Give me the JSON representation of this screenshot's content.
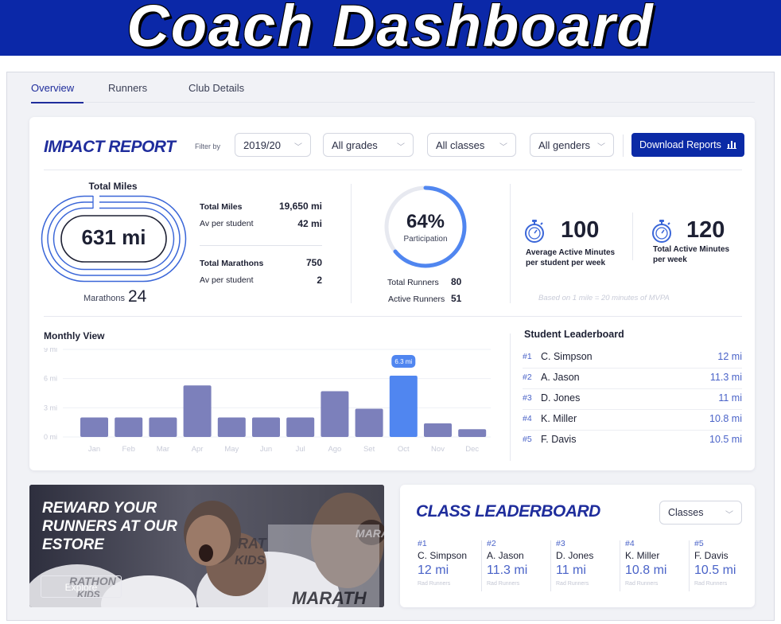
{
  "banner": {
    "title": "Coach Dashboard"
  },
  "tabs": [
    {
      "label": "Overview",
      "active": true
    },
    {
      "label": "Runners",
      "active": false
    },
    {
      "label": "Club Details",
      "active": false
    }
  ],
  "impact": {
    "title": "IMPACT REPORT",
    "filter_label": "Filter by",
    "filters": {
      "year": "2019/20",
      "grades": "All grades",
      "classes": "All classes",
      "genders": "All genders"
    },
    "download_label": "Download Reports",
    "download_icon": "bar-chart-icon"
  },
  "total_miles": {
    "title": "Total Miles",
    "value": "631 mi",
    "marathons_label": "Marathons",
    "marathons_value": "24",
    "stats": [
      {
        "label": "Total Miles",
        "value": "19,650 mi"
      },
      {
        "label": "Av per student",
        "value": "42 mi"
      },
      {
        "label": "Total Marathons",
        "value": "750"
      },
      {
        "label": "Av per student",
        "value": "2"
      }
    ]
  },
  "participation": {
    "percent_text": "64%",
    "percent": 64,
    "label": "Participation",
    "total_runners_label": "Total Runners",
    "total_runners": "80",
    "active_runners_label": "Active Runners",
    "active_runners": "51"
  },
  "active_minutes": {
    "avg_value": "100",
    "avg_label_1": "Average Active Minutes",
    "avg_label_2": "per student per week",
    "total_value": "120",
    "total_label_1": "Total Active Minutes",
    "total_label_2": "per week",
    "footnote": "Based on 1 mile = 20 minutes of MVPA",
    "icon": "stopwatch-icon"
  },
  "chart_data": {
    "type": "bar",
    "title": "Monthly View",
    "categories": [
      "Jan",
      "Feb",
      "Mar",
      "Apr",
      "May",
      "Jun",
      "Jul",
      "Ago",
      "Set",
      "Oct",
      "Nov",
      "Dec"
    ],
    "values": [
      2,
      2,
      2,
      5.3,
      2,
      2,
      2,
      4.7,
      2.9,
      6.3,
      1.4,
      0.8
    ],
    "y_ticks": [
      "0 mi",
      "3 mi",
      "6 mi",
      "9 mi"
    ],
    "ylim": [
      0,
      9
    ],
    "highlight": {
      "category": "Oct",
      "label": "6.3 mi"
    },
    "colors": {
      "bar": "#7c80bb",
      "highlight": "#5086f0"
    }
  },
  "student_leaderboard": {
    "title": "Student Leaderboard",
    "rows": [
      {
        "rank": "#1",
        "name": "C. Simpson",
        "value": "12 mi"
      },
      {
        "rank": "#2",
        "name": "A. Jason",
        "value": "11.3 mi"
      },
      {
        "rank": "#3",
        "name": "D. Jones",
        "value": "11 mi"
      },
      {
        "rank": "#4",
        "name": "K. Miller",
        "value": "10.8 mi"
      },
      {
        "rank": "#5",
        "name": "F. Davis",
        "value": "10.5 mi"
      }
    ]
  },
  "promo": {
    "title": "REWARD YOUR RUNNERS AT OUR ESTORE",
    "button": "Explore",
    "shirt_texts": [
      "RAT",
      "KIDS",
      "MARATH",
      "RATHON",
      "KIDS",
      "MARATHO"
    ]
  },
  "class_leaderboard": {
    "title": "CLASS LEADERBOARD",
    "select": "Classes",
    "items": [
      {
        "rank": "#1",
        "name": "C. Simpson",
        "value": "12 mi",
        "club": "Rad Runners"
      },
      {
        "rank": "#2",
        "name": "A. Jason",
        "value": "11.3 mi",
        "club": "Rad Runners"
      },
      {
        "rank": "#3",
        "name": "D. Jones",
        "value": "11 mi",
        "club": "Rad Runners"
      },
      {
        "rank": "#4",
        "name": "K. Miller",
        "value": "10.8 mi",
        "club": "Rad Runners"
      },
      {
        "rank": "#5",
        "name": "F. Davis",
        "value": "10.5 mi",
        "club": "Rad Runners"
      }
    ]
  },
  "colors": {
    "brand": "#0b28a8",
    "accent": "#1f2d9c",
    "ring": "#5086f0",
    "ring_track": "#e7e9f0"
  }
}
